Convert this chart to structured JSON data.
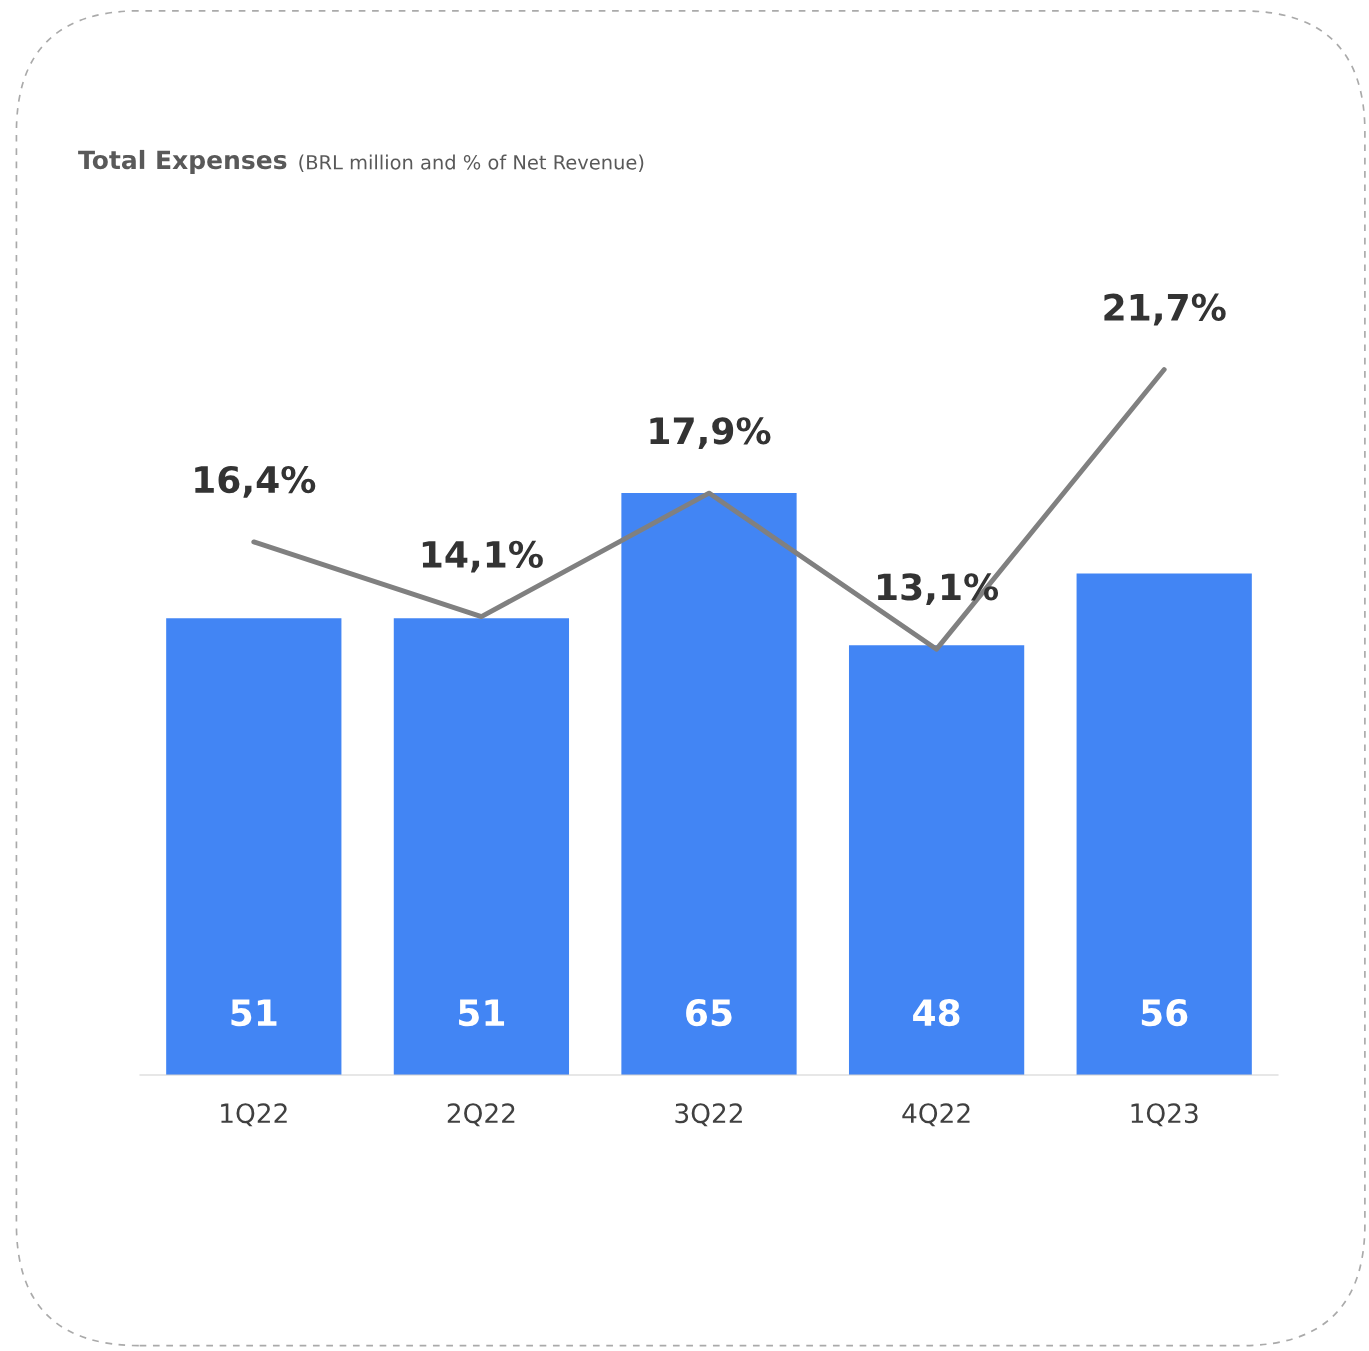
{
  "chart_data": {
    "type": "bar",
    "title": "Total Expenses",
    "subtitle": "(BRL million and % of Net Revenue)",
    "categories": [
      "1Q22",
      "2Q22",
      "3Q22",
      "4Q22",
      "1Q23"
    ],
    "tick_labels": "x",
    "grid": false,
    "series": [
      {
        "color": "#4285f4",
        "values": [
          51,
          51,
          65,
          48,
          56
        ],
        "value_labels": [
          "51",
          "51",
          "65",
          "48",
          "56"
        ]
      },
      {
        "type": "line",
        "axis": "y2",
        "color": "#808080",
        "values": [
          16.4,
          14.1,
          17.9,
          13.1,
          21.7
        ],
        "value_labels": [
          "16,4%",
          "14,1%",
          "17,9%",
          "13,1%",
          "21,7%"
        ]
      }
    ]
  }
}
